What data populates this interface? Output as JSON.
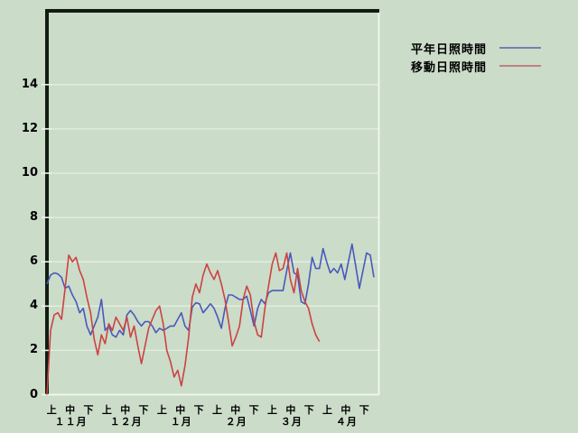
{
  "colors": {
    "background": "#cbdcc9",
    "grid": "#e4efe2",
    "frame_dark": "#121c12",
    "frame_light": "#eef6ec",
    "tick": "#eef6ec",
    "blue_series": "#4a58bc",
    "red_series": "#cc4242",
    "legend_blue": "#7380b8",
    "legend_red": "#c08080",
    "text": "#000000"
  },
  "legend": {
    "entries": [
      {
        "label": "平年日照時間",
        "color": "#7380b8"
      },
      {
        "label": "移動日照時間",
        "color": "#c08080"
      }
    ]
  },
  "chart_data": {
    "type": "line",
    "title": "",
    "xlabel": "",
    "ylabel": "",
    "grid": "horizontal light lines at every y tick",
    "legend_position": "top-right",
    "y_axis": {
      "min": 0,
      "max": 14,
      "tick_step": 2,
      "ticks": [
        0,
        2,
        4,
        6,
        8,
        10,
        12,
        14
      ],
      "headroom_units": 3.4
    },
    "x_axis": {
      "months": [
        "１１月",
        "１２月",
        "１月",
        "２月",
        "３月",
        "４月"
      ],
      "period_labels": [
        "上",
        "中",
        "下"
      ],
      "periods_total": 18,
      "days_total": 181,
      "note": "daily values from Nov 1 to Apr 30; ten-day period ticks 上/中/下 per month"
    },
    "series": [
      {
        "id": "heinen",
        "name": "平年日照時間",
        "color": "#4a58bc",
        "start_day": 0,
        "day_step": 2,
        "values": [
          5.0,
          5.4,
          5.5,
          5.45,
          5.3,
          4.8,
          4.9,
          4.5,
          4.2,
          3.7,
          3.9,
          3.1,
          2.7,
          3.1,
          3.5,
          4.3,
          2.9,
          3.1,
          2.7,
          2.6,
          2.9,
          2.7,
          3.6,
          3.8,
          3.6,
          3.3,
          3.1,
          3.3,
          3.3,
          3.1,
          2.8,
          3.0,
          2.9,
          3.0,
          3.1,
          3.1,
          3.4,
          3.7,
          3.1,
          2.9,
          3.95,
          4.15,
          4.1,
          3.7,
          3.9,
          4.1,
          3.9,
          3.5,
          3.0,
          3.9,
          4.5,
          4.5,
          4.4,
          4.3,
          4.3,
          4.45,
          3.8,
          3.1,
          3.9,
          4.3,
          4.1,
          4.6,
          4.7,
          4.7,
          4.7,
          4.7,
          5.6,
          6.4,
          5.5,
          5.4,
          4.2,
          4.1,
          5.0,
          6.2,
          5.7,
          5.7,
          6.6,
          6.0,
          5.5,
          5.7,
          5.5,
          5.9,
          5.2,
          6.0,
          6.8,
          5.8,
          4.8,
          5.6,
          6.4,
          6.3,
          5.3
        ]
      },
      {
        "id": "idou",
        "name": "移動日照時間",
        "color": "#cc4242",
        "start_day": 0,
        "day_step": 2,
        "values": [
          0.0,
          2.9,
          3.6,
          3.7,
          3.4,
          4.8,
          6.3,
          6.0,
          6.2,
          5.6,
          5.2,
          4.4,
          3.7,
          2.5,
          1.8,
          2.7,
          2.3,
          3.2,
          2.9,
          3.5,
          3.2,
          2.9,
          3.5,
          2.6,
          3.1,
          2.2,
          1.4,
          2.2,
          3.0,
          3.4,
          3.8,
          4.0,
          3.2,
          2.0,
          1.5,
          0.8,
          1.1,
          0.4,
          1.3,
          2.6,
          4.4,
          5.0,
          4.6,
          5.4,
          5.9,
          5.5,
          5.2,
          5.6,
          5.0,
          4.3,
          3.3,
          2.2,
          2.6,
          3.1,
          4.3,
          4.9,
          4.5,
          3.3,
          2.7,
          2.6,
          3.9,
          4.9,
          5.9,
          6.4,
          5.6,
          5.7,
          6.4,
          5.2,
          4.6,
          5.7,
          4.7,
          4.2,
          3.9,
          3.2,
          2.7,
          2.4
        ]
      }
    ]
  }
}
